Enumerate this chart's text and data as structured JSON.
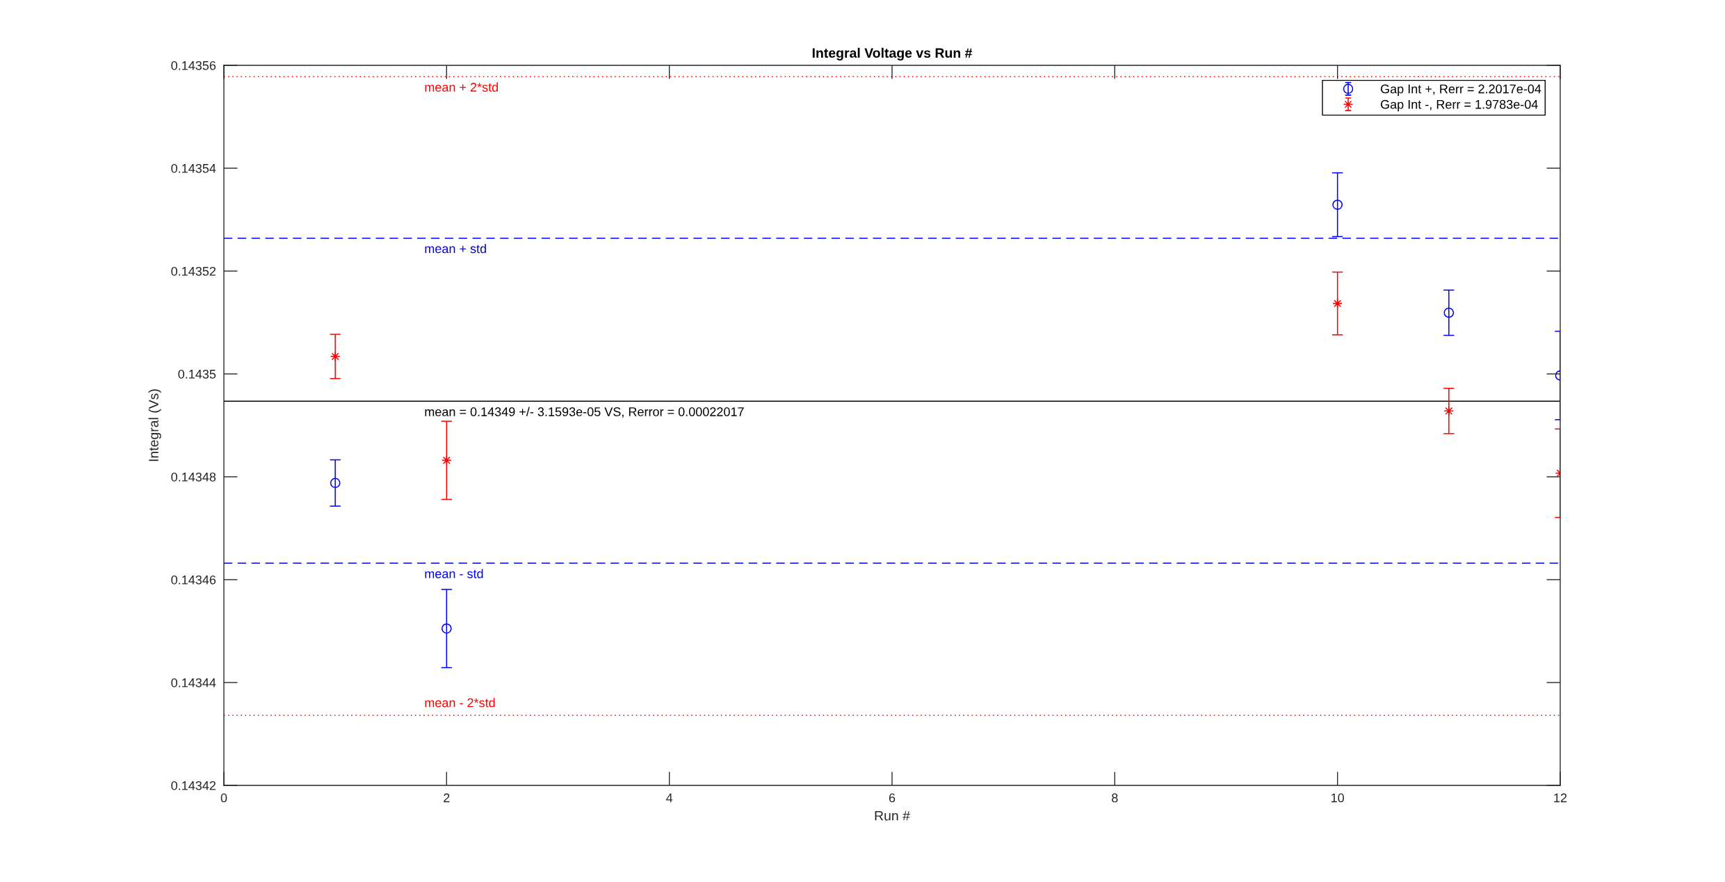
{
  "chart_data": {
    "type": "scatter",
    "title": "Integral Voltage vs Run #",
    "xlabel": "Run #",
    "ylabel": "Integral (Vs)",
    "xlim": [
      0,
      12
    ],
    "xticks": [
      0,
      2,
      4,
      6,
      8,
      10,
      12
    ],
    "ylim": [
      0.14342,
      0.14356
    ],
    "yticks": [
      0.14342,
      0.14344,
      0.14346,
      0.14348,
      0.1435,
      0.14352,
      0.14354,
      0.14356
    ],
    "legend": "top right",
    "grid": false,
    "series": [
      {
        "name": "Gap Int +, Rerr = 2.2017e-04",
        "color": "#0000ff",
        "marker": "circle",
        "x": [
          1,
          2,
          10,
          11,
          12
        ],
        "values": [
          0.1434788,
          0.1434505,
          0.1435329,
          0.1435119,
          0.1434997
        ],
        "errors": [
          4.5e-06,
          7.6e-06,
          6.2e-06,
          4.4e-06,
          8.6e-06
        ]
      },
      {
        "name": "Gap Int -, Rerr = 1.9783e-04",
        "color": "#ff0000",
        "marker": "star",
        "x": [
          1,
          2,
          10,
          11,
          12
        ],
        "values": [
          0.1435034,
          0.1434832,
          0.1435137,
          0.1434928,
          0.1434807
        ],
        "errors": [
          4.3e-06,
          7.6e-06,
          6.1e-06,
          4.4e-06,
          8.6e-06
        ]
      }
    ],
    "ref_lines": [
      {
        "axis": "y",
        "value": 0.1434947,
        "label": "mean = 0.14349 +/- 3.1593e-05 VS, Rerror = 0.00022017",
        "color": "#000000",
        "line_style": "solid"
      },
      {
        "axis": "y",
        "value": 0.1435264,
        "label": "mean + std",
        "color": "#0000ff",
        "line_style": "dashed"
      },
      {
        "axis": "y",
        "value": 0.1434632,
        "label": "mean - std",
        "color": "#0000ff",
        "line_style": "dashed"
      },
      {
        "axis": "y",
        "value": 0.1435578,
        "label": "mean + 2*std",
        "color": "#ff0000",
        "line_style": "dotted"
      },
      {
        "axis": "y",
        "value": 0.1434336,
        "label": "mean - 2*std",
        "color": "#ff0000",
        "line_style": "dotted"
      }
    ]
  }
}
